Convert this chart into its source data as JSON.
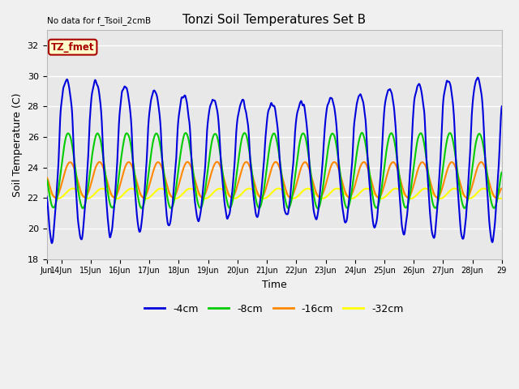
{
  "title": "Tonzi Soil Temperatures Set B",
  "xlabel": "Time",
  "ylabel": "Soil Temperature (C)",
  "no_data_text": "No data for f_Tsoil_2cmB",
  "tz_fmet_label": "TZ_fmet",
  "ylim": [
    18,
    33
  ],
  "yticks": [
    18,
    20,
    22,
    24,
    26,
    28,
    30,
    32
  ],
  "x_start_day": 13.5,
  "x_end_day": 29.0,
  "xtick_days": [
    13.5,
    14,
    15,
    16,
    17,
    18,
    19,
    20,
    21,
    22,
    23,
    24,
    25,
    26,
    27,
    28,
    29
  ],
  "xtick_labels": [
    "Jun",
    "14Jun",
    "15Jun",
    "16Jun",
    "17Jun",
    "18Jun",
    "19Jun",
    "20Jun",
    "21Jun",
    "22Jun",
    "23Jun",
    "24Jun",
    "25Jun",
    "26Jun",
    "27Jun",
    "28Jun",
    "29"
  ],
  "colors": {
    "4cm": "#0000dd",
    "8cm": "#00cc00",
    "16cm": "#ff8800",
    "32cm": "#ffff00"
  },
  "legend_labels": [
    "-4cm",
    "-8cm",
    "-16cm",
    "-32cm"
  ],
  "plot_bg": "#e8e8e8",
  "fig_bg": "#f0f0f0",
  "grid_color": "#ffffff",
  "tz_fmet_bg": "#ffffcc",
  "tz_fmet_border": "#aa0000",
  "tz_fmet_text": "#aa0000"
}
